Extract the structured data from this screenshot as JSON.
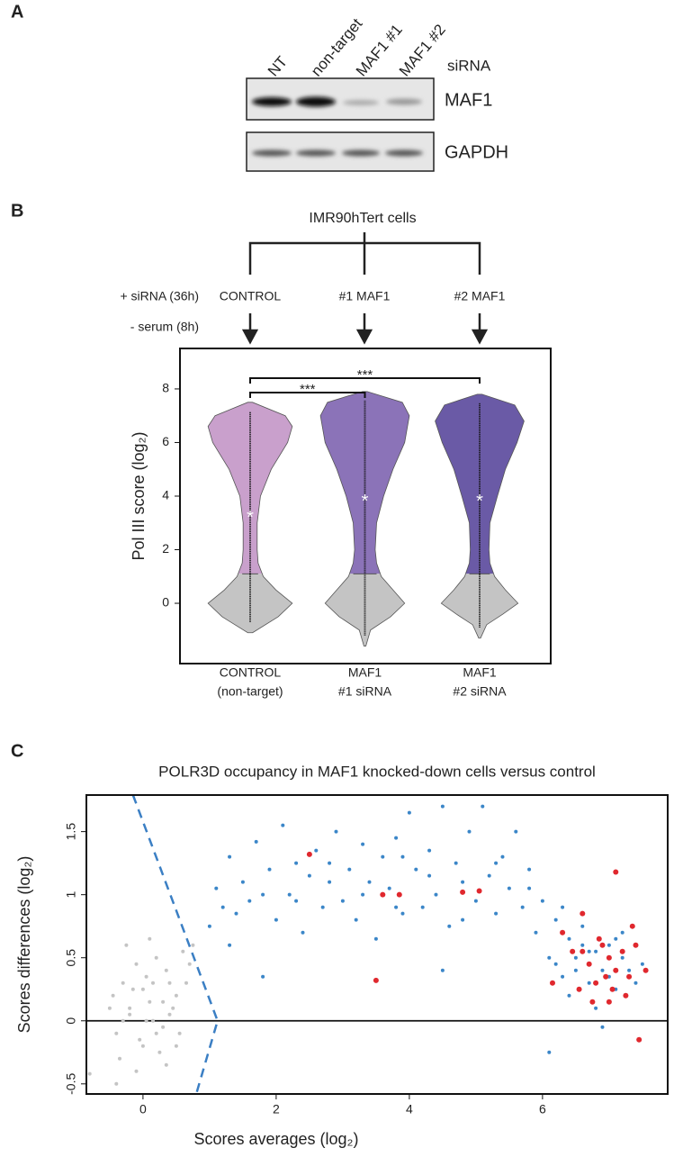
{
  "blot": {
    "label": "A",
    "lanes": [
      "NT",
      "non-target",
      "MAF1 #1",
      "MAF1 #2"
    ],
    "lanes_title": "siRNA",
    "rows": [
      "MAF1",
      "GAPDH"
    ]
  },
  "diagram": {
    "label": "B",
    "title": "IMR90hTert cells",
    "conditions": [
      "+ siRNA (36h)",
      "- serum (8h)"
    ],
    "groups": [
      "CONTROL",
      "#1 MAF1",
      "#2 MAF1"
    ]
  },
  "panel_c_label": "C",
  "chart_data": [
    {
      "type": "violin",
      "ylabel": "Pol III score (log₂)",
      "categories": [
        [
          "CONTROL",
          "(non-target)"
        ],
        [
          "MAF1",
          "#1 siRNA"
        ],
        [
          "MAF1",
          "#2 siRNA"
        ]
      ],
      "ylim": [
        -2.25,
        9.51
      ],
      "yticks": [
        0,
        2,
        4,
        6,
        8
      ],
      "split": 1.1,
      "low_color": "#c4c4c4",
      "series": [
        {
          "color": "#c9a0cc",
          "median": 3.3,
          "y": [
            -1.1,
            -0.5,
            0,
            0.5,
            1,
            1.5,
            2,
            3,
            4,
            5,
            6,
            6.6,
            7,
            7.5
          ],
          "widths": [
            0.05,
            0.6,
            0.9,
            0.55,
            0.28,
            0.17,
            0.15,
            0.15,
            0.22,
            0.45,
            0.8,
            0.9,
            0.75,
            0.05
          ]
        },
        {
          "color": "#8b73b8",
          "median": 3.9,
          "y": [
            -1.6,
            -1,
            -0.5,
            0,
            0.5,
            1,
            1.5,
            2,
            3,
            4,
            5,
            6,
            7,
            7.5,
            7.9
          ],
          "widths": [
            0.02,
            0.12,
            0.55,
            0.85,
            0.6,
            0.35,
            0.25,
            0.22,
            0.25,
            0.4,
            0.6,
            0.85,
            0.95,
            0.8,
            0.05
          ]
        },
        {
          "color": "#6a5aa6",
          "median": 3.9,
          "y": [
            -1.3,
            -0.8,
            -0.4,
            0,
            0.5,
            1,
            1.5,
            2,
            3,
            4,
            5,
            6,
            6.8,
            7.4,
            7.8
          ],
          "widths": [
            0.02,
            0.15,
            0.5,
            0.82,
            0.55,
            0.32,
            0.22,
            0.2,
            0.22,
            0.38,
            0.55,
            0.8,
            0.95,
            0.75,
            0.05
          ]
        }
      ],
      "annotations": [
        {
          "text": "***",
          "from": 0,
          "to": 1
        },
        {
          "text": "***",
          "from": 0,
          "to": 2
        }
      ]
    },
    {
      "type": "scatter",
      "title": "POLR3D occupancy in MAF1 knocked-down cells versus control",
      "xlabel": "Scores averages (log₂)",
      "ylabel": "Scores differences (log₂)",
      "xlim": [
        -0.85,
        7.88
      ],
      "ylim": [
        -0.58,
        1.79
      ],
      "xticks": [
        0,
        2,
        4,
        6
      ],
      "yticks": [
        -0.5,
        0,
        0.5,
        1,
        1.5
      ],
      "hline": 0,
      "guide": {
        "x": [
          -0.15,
          1.12,
          0.8
        ],
        "y": [
          1.79,
          0,
          -0.58
        ],
        "color": "#3b7fc4"
      },
      "series": [
        {
          "color": "#c4c4c4",
          "x": [
            -0.5,
            -0.4,
            -0.3,
            -0.2,
            -0.1,
            0,
            0.1,
            0.2,
            0.3,
            0.4,
            0.5,
            0.6,
            -0.35,
            -0.25,
            -0.15,
            -0.05,
            0.05,
            0.15,
            0.25,
            0.35,
            0.45,
            0.55,
            0.65,
            -0.45,
            -0.3,
            -0.1,
            0.1,
            0.3,
            0.5,
            0.7,
            -0.2,
            0,
            0.2,
            0.4,
            -0.4,
            0.15,
            0.35,
            -0.8,
            0.75,
            0.05
          ],
          "y": [
            0.1,
            -0.1,
            0.3,
            0.05,
            0.45,
            -0.2,
            0.15,
            0.5,
            -0.05,
            0.3,
            0.2,
            0.55,
            -0.3,
            0.6,
            0.25,
            -0.15,
            0.35,
            0,
            -0.25,
            0.4,
            0.1,
            -0.1,
            0.3,
            0.2,
            0,
            -0.4,
            0.65,
            0.15,
            -0.2,
            0.45,
            0.1,
            0.25,
            -0.1,
            0.05,
            -0.5,
            0.3,
            -0.35,
            -0.42,
            0.6,
            0
          ]
        },
        {
          "color": "#3b86c8",
          "x": [
            1,
            1.1,
            1.2,
            1.3,
            1.4,
            1.5,
            1.6,
            1.7,
            1.8,
            1.9,
            2,
            2.1,
            2.2,
            2.3,
            2.4,
            2.5,
            2.6,
            2.7,
            2.8,
            2.9,
            3,
            3.1,
            3.2,
            3.3,
            3.4,
            3.5,
            3.6,
            3.7,
            3.8,
            3.9,
            4,
            4.1,
            4.2,
            4.3,
            4.4,
            4.5,
            4.6,
            4.7,
            4.8,
            4.9,
            5,
            5.1,
            5.2,
            5.3,
            5.4,
            5.5,
            5.6,
            5.7,
            5.8,
            5.9,
            6,
            6.1,
            6.2,
            6.3,
            6.4,
            6.5,
            6.6,
            6.7,
            6.8,
            6.9,
            7,
            7.1,
            7.2,
            7.3,
            7.4,
            7.5,
            1.3,
            1.8,
            2.3,
            2.8,
            3.3,
            3.8,
            4.3,
            4.8,
            5.3,
            5.8,
            6.2,
            6.4,
            6.6,
            6.8,
            7,
            7.2,
            6.3,
            6.5,
            6.7,
            6.9,
            7.1,
            4.5,
            6.1,
            3.9
          ],
          "y": [
            0.75,
            1.05,
            0.9,
            1.3,
            0.85,
            1.1,
            0.95,
            1.42,
            0.35,
            1.2,
            0.8,
            1.55,
            1,
            1.25,
            0.7,
            1.15,
            1.35,
            0.9,
            1.25,
            1.5,
            0.95,
            1.2,
            0.8,
            1.4,
            1.1,
            0.65,
            1.3,
            1.05,
            1.45,
            0.85,
            1.65,
            1.2,
            0.9,
            1.35,
            1,
            1.7,
            0.75,
            1.25,
            1.1,
            1.5,
            0.95,
            1.7,
            1.15,
            0.85,
            1.3,
            1.05,
            1.5,
            0.9,
            1.2,
            0.7,
            0.95,
            0.5,
            0.8,
            0.35,
            0.65,
            0.5,
            0.75,
            0.3,
            0.55,
            0.4,
            0.6,
            0.25,
            0.5,
            0.4,
            0.3,
            0.45,
            0.6,
            1,
            0.95,
            1.1,
            1,
            0.9,
            1.15,
            0.8,
            1.25,
            1.05,
            0.45,
            0.2,
            0.6,
            0.1,
            0.35,
            0.7,
            0.9,
            0.4,
            0.55,
            -0.05,
            0.65,
            0.4,
            -0.25,
            1.3
          ]
        },
        {
          "color": "#e0282e",
          "x": [
            2.5,
            3.6,
            3.85,
            3.5,
            4.8,
            5.05,
            6.15,
            6.3,
            6.45,
            6.6,
            6.7,
            6.55,
            6.8,
            6.9,
            7,
            7.1,
            7.2,
            7.05,
            6.75,
            7.3,
            7.4,
            7.55,
            7.45,
            7,
            6.85,
            7.35,
            7.1,
            6.6,
            6.95,
            7.25
          ],
          "y": [
            1.32,
            1,
            1,
            0.32,
            1.02,
            1.03,
            0.3,
            0.7,
            0.55,
            0.85,
            0.45,
            0.25,
            0.3,
            0.6,
            0.5,
            0.4,
            0.55,
            0.25,
            0.15,
            0.35,
            0.6,
            0.4,
            -0.15,
            0.15,
            0.65,
            0.75,
            1.18,
            0.55,
            0.35,
            0.2
          ]
        }
      ]
    }
  ]
}
